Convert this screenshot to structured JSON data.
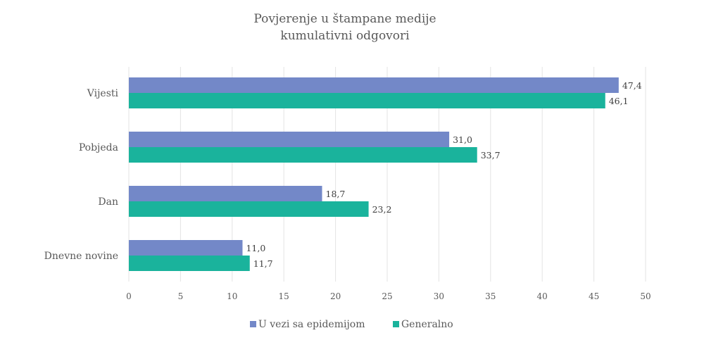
{
  "chart_data": {
    "type": "bar",
    "orientation": "horizontal",
    "title": "Povjerenje u štampane medije",
    "subtitle": "kumulativni odgovori",
    "categories": [
      "Vijesti",
      "Pobjeda",
      "Dan",
      "Dnevne novine"
    ],
    "series": [
      {
        "name": "U vezi sa epidemijom",
        "color": "#7388c8",
        "values": [
          47.4,
          31.0,
          18.7,
          11.0
        ],
        "labels": [
          "47,4",
          "31,0",
          "18,7",
          "11,0"
        ]
      },
      {
        "name": "Generalno",
        "color": "#1ab39c",
        "values": [
          46.1,
          33.7,
          23.2,
          11.7
        ],
        "labels": [
          "46,1",
          "33,7",
          "23,2",
          "11,7"
        ]
      }
    ],
    "xlim": [
      0,
      50
    ],
    "xticks": [
      0,
      5,
      10,
      15,
      20,
      25,
      30,
      35,
      40,
      45,
      50
    ],
    "xlabel": "",
    "ylabel": "",
    "grid": true,
    "legend": "bottom"
  }
}
